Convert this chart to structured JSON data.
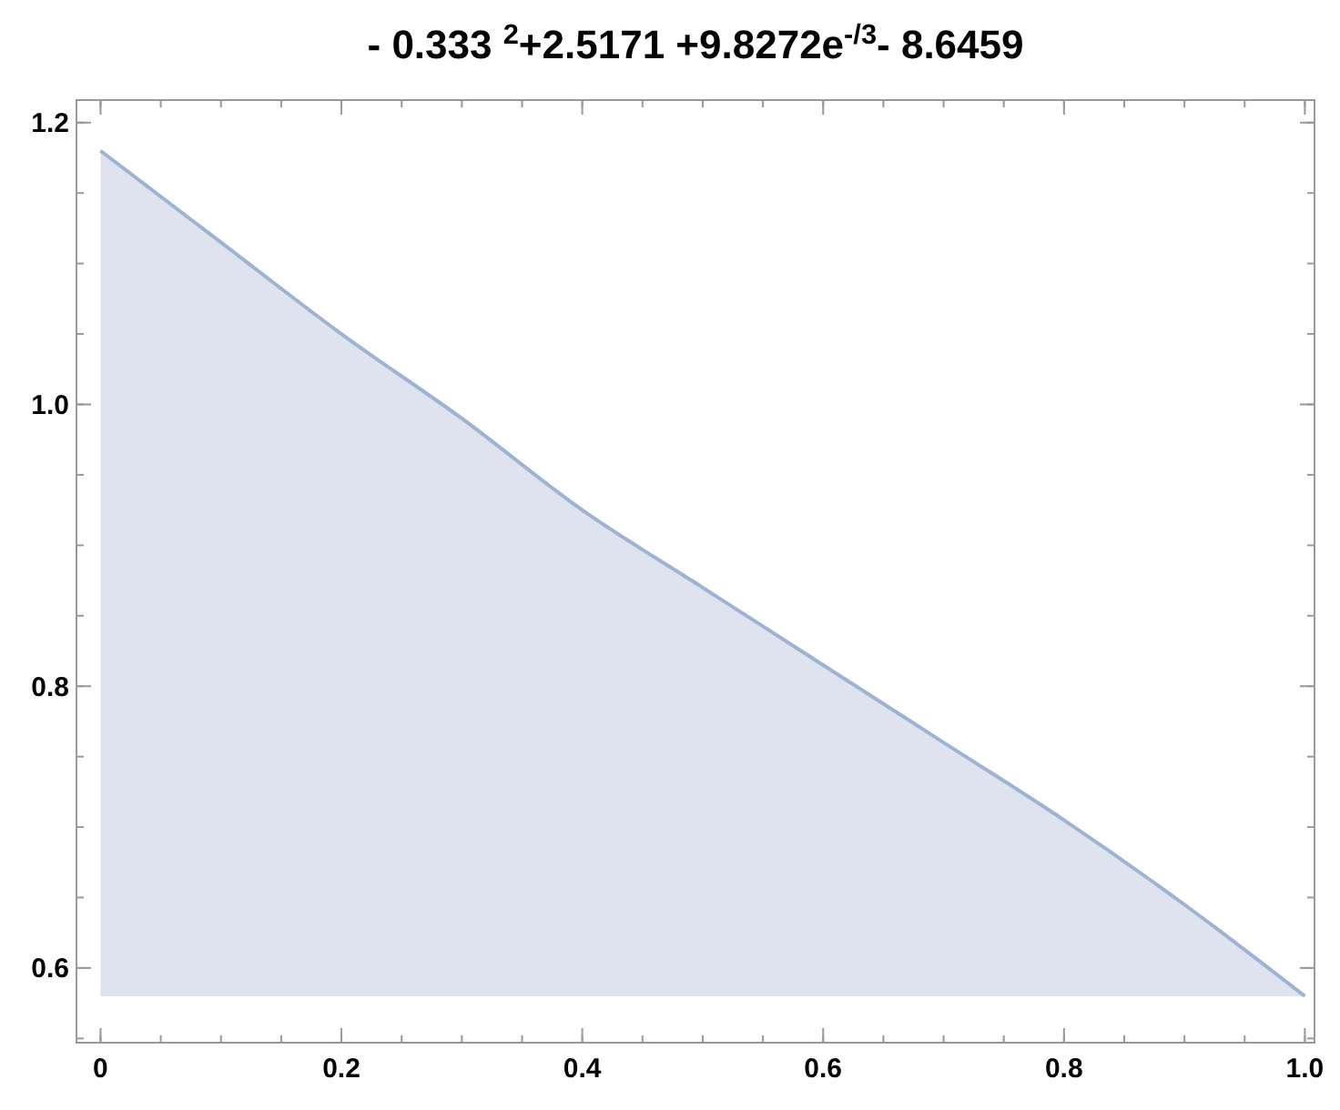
{
  "chart_data": {
    "type": "area",
    "title": "- 0.333 $^{2}$+2.5171 +9.8272e$^{-/3}$- 8.6459",
    "x": [
      0,
      0.1,
      0.2,
      0.3,
      0.4,
      0.5,
      0.6,
      0.7,
      0.8,
      0.9,
      1.0
    ],
    "series": [
      {
        "color": "#9fb3d1",
        "values": [
          1.18,
          1.115,
          1.05,
          0.99,
          0.925,
          0.87,
          0.815,
          0.76,
          0.705,
          0.645,
          0.58
        ]
      }
    ],
    "xlim": [
      -0.02,
      1.008
    ],
    "ylim": [
      0.547,
      1.216
    ],
    "xticks": [
      0,
      0.2,
      0.4,
      0.6,
      0.8,
      {
        "value": 1.0,
        "label": "1.0"
      }
    ],
    "yticks": [
      0.6,
      0.8,
      {
        "value": 1.0,
        "label": "1.0"
      },
      1.2
    ],
    "grid": false
  }
}
